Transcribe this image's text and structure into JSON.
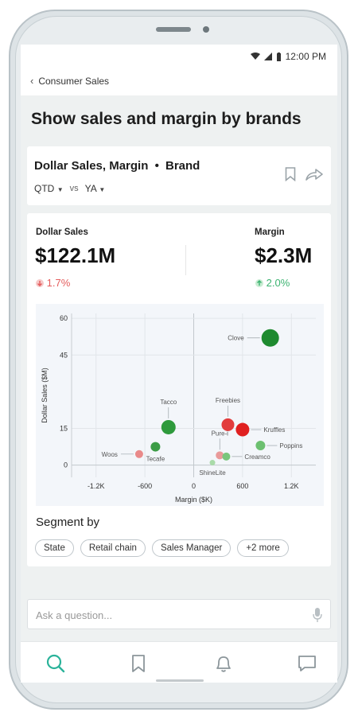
{
  "status": {
    "time": "12:00 PM"
  },
  "nav": {
    "back_label": "Consumer Sales"
  },
  "query": {
    "title": "Show sales and margin by brands"
  },
  "card": {
    "title": "Dollar Sales, Margin",
    "title_separator": "•",
    "title_dimension": "Brand",
    "period": "QTD",
    "vs_label": "vs",
    "compare": "YA"
  },
  "kpis": {
    "left": {
      "label": "Dollar Sales",
      "value": "$122.1M",
      "delta": "1.7%",
      "direction": "down",
      "color": "#e45c5c"
    },
    "right": {
      "label": "Margin",
      "value": "$2.3M",
      "delta": "2.0%",
      "direction": "up",
      "color": "#3cb371"
    }
  },
  "chart_data": {
    "type": "scatter",
    "xlabel": "Margin ($K)",
    "ylabel": "Dollar Sales ($M)",
    "xlim": [
      -1500,
      1500
    ],
    "ylim": [
      -5,
      62
    ],
    "x_ticks": [
      -1200,
      -600,
      0,
      600,
      1200
    ],
    "x_tick_labels": [
      "-1.2K",
      "-600",
      "0",
      "600",
      "1.2K"
    ],
    "y_ticks": [
      0,
      15,
      45,
      60
    ],
    "y_tick_labels": [
      "0",
      "15",
      "45",
      "60"
    ],
    "grid": true,
    "points": [
      {
        "label": "Clove",
        "x": 940,
        "y": 52,
        "size": 11,
        "color": "#1e8a2f",
        "label_pos": "left"
      },
      {
        "label": "Tacco",
        "x": -310,
        "y": 15.5,
        "size": 9,
        "color": "#2e9a3c",
        "label_pos": "top"
      },
      {
        "label": "Freebies",
        "x": 420,
        "y": 16.5,
        "size": 8,
        "color": "#e23c3c",
        "label_pos": "top"
      },
      {
        "label": "Kruffles",
        "x": 600,
        "y": 14.5,
        "size": 8.5,
        "color": "#e02020",
        "label_pos": "right"
      },
      {
        "label": "Poppins",
        "x": 820,
        "y": 8,
        "size": 6,
        "color": "#6cc070",
        "label_pos": "right"
      },
      {
        "label": "Pure-i",
        "x": 320,
        "y": 4,
        "size": 5,
        "color": "#e99a9a",
        "label_pos": "top"
      },
      {
        "label": "Creamco",
        "x": 400,
        "y": 3.5,
        "size": 5,
        "color": "#7ac67c",
        "label_pos": "right"
      },
      {
        "label": "Tecafe",
        "x": -470,
        "y": 7.5,
        "size": 6,
        "color": "#3c9c46",
        "label_pos": "bottom"
      },
      {
        "label": "Woos",
        "x": -670,
        "y": 4.5,
        "size": 5,
        "color": "#e98a8a",
        "label_pos": "left"
      },
      {
        "label": "ShineLite",
        "x": 230,
        "y": 1,
        "size": 3.5,
        "color": "#a9dba9",
        "label_pos": "bottom"
      }
    ]
  },
  "segment": {
    "title": "Segment by",
    "chips": [
      "State",
      "Retail chain",
      "Sales Manager",
      "+2 more"
    ]
  },
  "ask": {
    "placeholder": "Ask a question..."
  },
  "colors": {
    "accent": "#2bb39a",
    "icon_gray": "#8c969b"
  },
  "tabs": [
    {
      "icon": "search-icon",
      "active": true
    },
    {
      "icon": "bookmark-icon",
      "active": false
    },
    {
      "icon": "bell-icon",
      "active": false
    },
    {
      "icon": "chat-icon",
      "active": false
    }
  ]
}
